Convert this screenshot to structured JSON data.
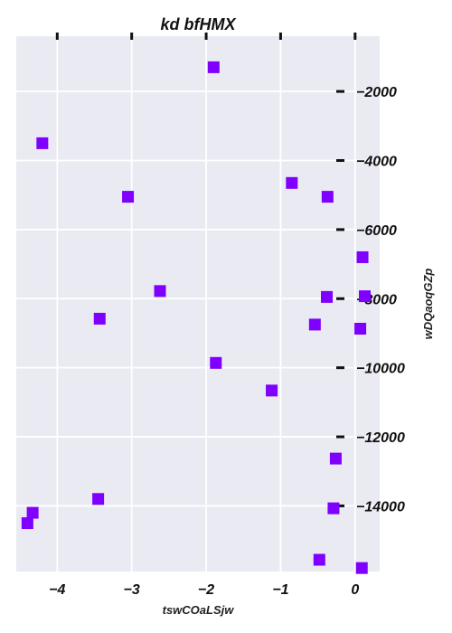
{
  "chart_data": {
    "type": "scatter",
    "title": "kd bfHMX",
    "xlabel": "tswCOaLSjw",
    "ylabel": "wDQaoqGZp",
    "xlim": [
      -4.55,
      0.33
    ],
    "ylim": [
      -15900,
      -400
    ],
    "x_ticks": [
      -4,
      -3,
      -2,
      -1,
      0
    ],
    "x_tick_labels": [
      "−4",
      "−3",
      "−2",
      "−1",
      "0"
    ],
    "y_ticks": [
      -2000,
      -4000,
      -6000,
      -8000,
      -10000,
      -12000,
      -14000
    ],
    "y_tick_labels": [
      "−2000",
      "−4000",
      "−6000",
      "−8000",
      "−10000",
      "−12000",
      "−14000"
    ],
    "grid": true,
    "marker": "square",
    "colors": {
      "background": "#eaeaf2",
      "grid": "#ffffff",
      "marker": "#7f00ff"
    },
    "series": [
      {
        "x": [
          -1.9,
          -4.2,
          -3.05,
          -0.85,
          -0.37,
          0.1,
          -2.62,
          -3.43,
          -0.38,
          0.13,
          -0.54,
          0.07,
          -1.87,
          -1.12,
          -0.26,
          -3.45,
          -4.33,
          -0.29,
          -4.4,
          -0.48,
          0.09
        ],
        "y": [
          -1300,
          -3500,
          -5050,
          -4650,
          -5050,
          -6800,
          -7780,
          -8580,
          -7950,
          -7930,
          -8750,
          -8870,
          -9860,
          -10660,
          -12630,
          -13800,
          -14200,
          -14070,
          -14500,
          -15560,
          -15800
        ]
      }
    ]
  }
}
